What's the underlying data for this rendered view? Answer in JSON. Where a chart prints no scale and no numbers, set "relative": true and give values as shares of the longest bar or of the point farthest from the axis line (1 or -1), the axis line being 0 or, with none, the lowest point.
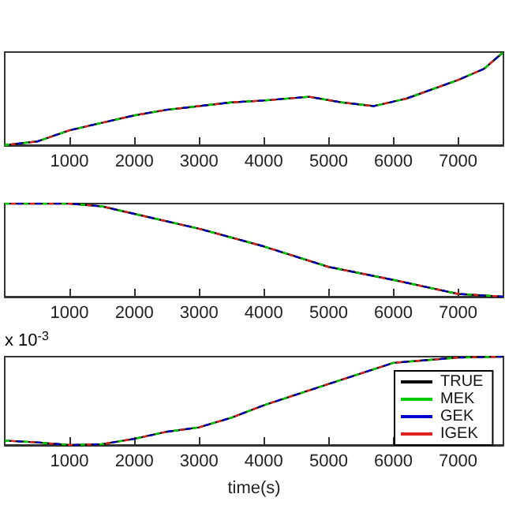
{
  "chart_data": [
    {
      "type": "line",
      "relative": true,
      "x": [
        0,
        500,
        1000,
        1500,
        2000,
        2500,
        3000,
        3500,
        4000,
        4700,
        5200,
        5700,
        6200,
        7000,
        7400,
        7700
      ],
      "xlim": [
        0,
        7700
      ],
      "xticks": [
        1000,
        2000,
        3000,
        4000,
        5000,
        6000,
        7000
      ],
      "grid": false,
      "legend": false,
      "marker": "none",
      "series": [
        {
          "color": "#000000",
          "line_style": "solid",
          "values": [
            0,
            0.04,
            0.16,
            0.24,
            0.32,
            0.38,
            0.42,
            0.46,
            0.48,
            0.52,
            0.46,
            0.42,
            0.5,
            0.7,
            0.82,
            1
          ]
        },
        {
          "color": "#00cc00",
          "line_style": "dashed",
          "values": [
            0,
            0.04,
            0.16,
            0.24,
            0.32,
            0.38,
            0.42,
            0.46,
            0.48,
            0.52,
            0.46,
            0.42,
            0.5,
            0.7,
            0.82,
            1
          ]
        },
        {
          "color": "#0000cc",
          "line_style": "dashed",
          "values": [
            0,
            0.04,
            0.16,
            0.24,
            0.32,
            0.38,
            0.42,
            0.46,
            0.48,
            0.52,
            0.46,
            0.42,
            0.5,
            0.7,
            0.82,
            1
          ]
        },
        {
          "color": "#dd2222",
          "line_style": "dashed",
          "values": [
            0,
            0.04,
            0.16,
            0.24,
            0.32,
            0.38,
            0.42,
            0.46,
            0.48,
            0.52,
            0.46,
            0.42,
            0.5,
            0.7,
            0.82,
            1
          ]
        }
      ]
    },
    {
      "type": "line",
      "relative": true,
      "x": [
        0,
        1000,
        1500,
        2000,
        3000,
        4000,
        5000,
        6000,
        7000,
        7700
      ],
      "xlim": [
        0,
        7700
      ],
      "xticks": [
        1000,
        2000,
        3000,
        4000,
        5000,
        6000,
        7000
      ],
      "grid": false,
      "legend": false,
      "marker": "none",
      "series": [
        {
          "color": "#000000",
          "line_style": "solid",
          "values": [
            1,
            1,
            0.97,
            0.89,
            0.73,
            0.54,
            0.32,
            0.18,
            0.03,
            0
          ]
        },
        {
          "color": "#00cc00",
          "line_style": "dashed",
          "values": [
            1,
            1,
            0.97,
            0.89,
            0.73,
            0.54,
            0.32,
            0.18,
            0.03,
            0
          ]
        },
        {
          "color": "#0000cc",
          "line_style": "dashed",
          "values": [
            1,
            1,
            0.97,
            0.89,
            0.73,
            0.54,
            0.32,
            0.18,
            0.03,
            0
          ]
        },
        {
          "color": "#dd2222",
          "line_style": "dashed",
          "values": [
            1,
            1,
            0.97,
            0.89,
            0.73,
            0.54,
            0.32,
            0.18,
            0.03,
            0
          ]
        }
      ]
    },
    {
      "type": "line",
      "relative": true,
      "xlabel": "time(s)",
      "annotations": [
        "x 10$^{-3}$"
      ],
      "x": [
        0,
        500,
        1000,
        1500,
        2000,
        2500,
        3000,
        3500,
        4000,
        5000,
        6000,
        6500,
        7000,
        7700
      ],
      "xlim": [
        0,
        7700
      ],
      "xticks": [
        1000,
        2000,
        3000,
        4000,
        5000,
        6000,
        7000
      ],
      "grid": false,
      "legend": "bottom right",
      "marker": "none",
      "series": [
        {
          "name": "TRUE",
          "color": "#000000",
          "line_style": "solid",
          "values": [
            0.05,
            0.03,
            0,
            0.01,
            0.07,
            0.15,
            0.2,
            0.31,
            0.45,
            0.69,
            0.93,
            0.96,
            0.99,
            1
          ]
        },
        {
          "name": "MEK",
          "color": "#00cc00",
          "line_style": "dashed",
          "values": [
            0.05,
            0.03,
            0,
            0.01,
            0.07,
            0.15,
            0.2,
            0.31,
            0.45,
            0.69,
            0.93,
            0.96,
            0.99,
            1
          ]
        },
        {
          "name": "GEK",
          "color": "#0000cc",
          "line_style": "dashed",
          "values": [
            0.05,
            0.03,
            0,
            0.01,
            0.07,
            0.15,
            0.2,
            0.31,
            0.45,
            0.69,
            0.93,
            0.96,
            0.99,
            1
          ]
        },
        {
          "name": "IGEK",
          "color": "#dd2222",
          "line_style": "dashed",
          "values": [
            0.05,
            0.03,
            0,
            0.01,
            0.07,
            0.15,
            0.2,
            0.31,
            0.45,
            0.69,
            0.93,
            0.96,
            0.99,
            1
          ]
        }
      ]
    }
  ]
}
